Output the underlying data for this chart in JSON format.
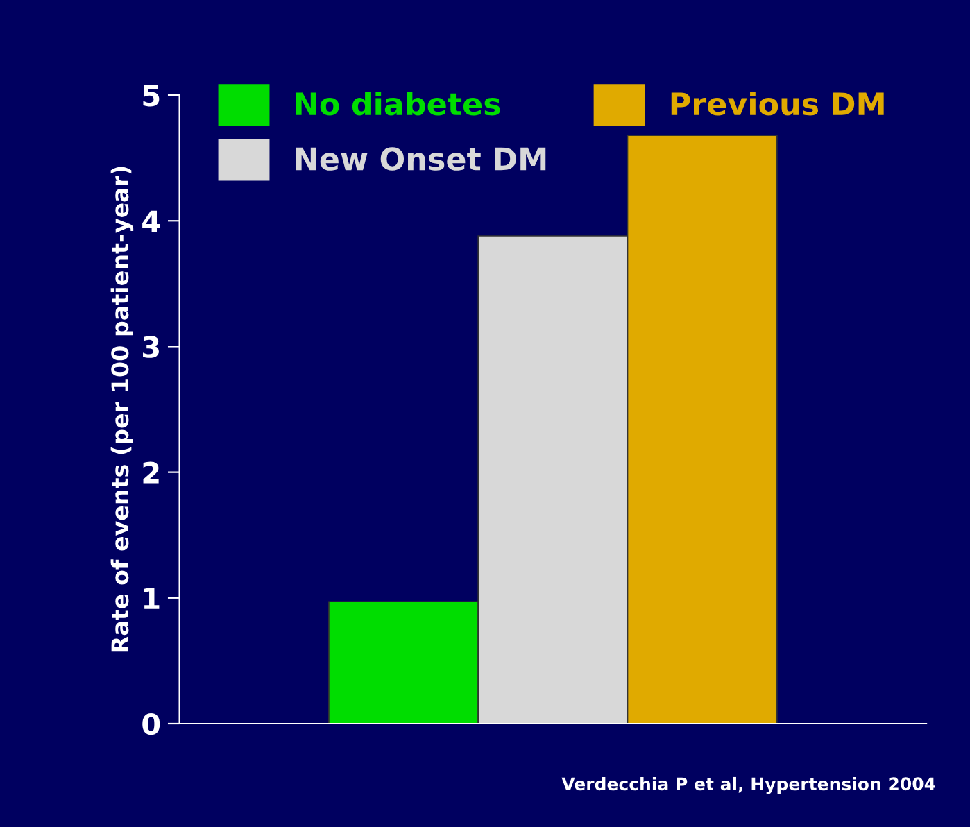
{
  "chart_data": {
    "type": "bar",
    "ylabel": "Rate of events (per 100 patient-year)",
    "categories": [
      null
    ],
    "series": [
      {
        "name": "No diabetes",
        "color": "#00dd00",
        "values": [
          0.97
        ]
      },
      {
        "name": "New Onset DM",
        "color": "#d8d8d8",
        "values": [
          3.88
        ]
      },
      {
        "name": "Previous DM",
        "color": "#e0aa00",
        "values": [
          4.68
        ]
      }
    ],
    "ylim": [
      0,
      5
    ],
    "yticks": [
      0,
      1,
      2,
      3,
      4,
      5
    ],
    "grid": false,
    "legend": "top",
    "annotations": [
      "Verdecchia P et al, Hypertension 2004"
    ]
  }
}
